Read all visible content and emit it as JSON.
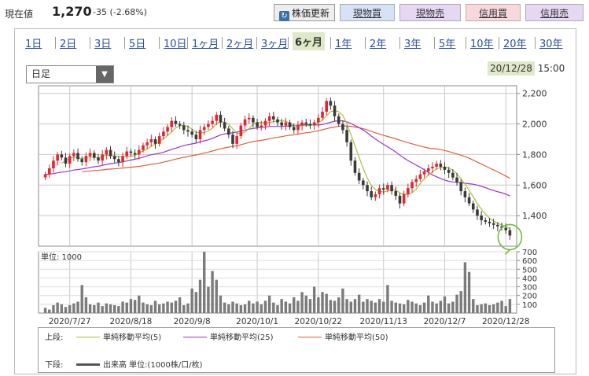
{
  "price": {
    "label": "現在値",
    "value": "1,270",
    "change": "-35 (-2.68%)"
  },
  "buttons": {
    "update": "株価更新",
    "buy": "現物買",
    "sell": "現物売",
    "margin_buy": "信用買",
    "margin_sell": "信用売"
  },
  "periods": [
    "1日",
    "2日",
    "3日",
    "5日",
    "10日",
    "1ヶ月",
    "2ヶ月",
    "3ヶ月",
    "6ヶ月",
    "1年",
    "2年",
    "3年",
    "5年",
    "10年",
    "20年",
    "30年"
  ],
  "selected_period": "6ヶ月",
  "dropdown": {
    "value": "日足",
    "arrow": "▼"
  },
  "stamp": {
    "date": "20/12/28",
    "time": "15:00"
  },
  "colors": {
    "up": "#e0262e",
    "down": "#3a3a3a",
    "ma5": "#a9bf3a",
    "ma25": "#9a33cc",
    "ma50": "#e06040",
    "volume": "#7b7b7b",
    "highlight": "#6cbf3b"
  },
  "legend": {
    "upper": "上段:",
    "lower": "下段:",
    "ma5": "単純移動平均(5)",
    "ma25": "単純移動平均(25)",
    "ma50": "単純移動平均(50)",
    "volume": "出来高 単位:(1000株/口/枚)"
  },
  "chart_data": {
    "type": "candlestick",
    "price_axis": {
      "ticks": [
        "2,200",
        "2,000",
        "1,800",
        "1,600",
        "1,400"
      ],
      "values": [
        2200,
        2000,
        1800,
        1600,
        1400
      ],
      "range": [
        1200,
        2250
      ]
    },
    "volume_axis": {
      "label": "単位: 1000",
      "ticks": [
        "700",
        "600",
        "500",
        "400",
        "300",
        "200",
        "100"
      ],
      "values": [
        700,
        600,
        500,
        400,
        300,
        200,
        100
      ],
      "range": [
        0,
        700
      ]
    },
    "x_labels": [
      "2020/7/27",
      "2020/8/18",
      "2020/9/8",
      "2020/10/1",
      "2020/10/22",
      "2020/11/13",
      "2020/12/7",
      "2020/12/28"
    ],
    "x_label_indices": [
      6,
      21,
      36,
      52,
      67,
      83,
      98,
      113
    ],
    "close": [
      1670,
      1710,
      1760,
      1800,
      1780,
      1740,
      1790,
      1810,
      1770,
      1750,
      1790,
      1810,
      1780,
      1760,
      1800,
      1830,
      1790,
      1770,
      1750,
      1790,
      1820,
      1810,
      1800,
      1830,
      1860,
      1880,
      1900,
      1870,
      1920,
      1950,
      1980,
      2020,
      2000,
      1990,
      1960,
      1950,
      1930,
      1900,
      1960,
      1980,
      2000,
      2020,
      2060,
      2010,
      1970,
      1930,
      1870,
      1920,
      1990,
      2030,
      2040,
      2010,
      1980,
      1990,
      2020,
      2050,
      2030,
      2010,
      1990,
      2010,
      1980,
      1960,
      1990,
      2010,
      2000,
      1990,
      2010,
      2040,
      2080,
      2150,
      2120,
      2050,
      2000,
      1960,
      1880,
      1760,
      1680,
      1630,
      1600,
      1560,
      1520,
      1540,
      1580,
      1570,
      1600,
      1560,
      1530,
      1480,
      1540,
      1580,
      1620,
      1640,
      1670,
      1690,
      1710,
      1720,
      1740,
      1720,
      1700,
      1680,
      1650,
      1620,
      1560,
      1520,
      1480,
      1440,
      1400,
      1370,
      1360,
      1350,
      1340,
      1330,
      1320,
      1305,
      1270
    ],
    "volume": [
      60,
      40,
      90,
      120,
      100,
      70,
      90,
      110,
      130,
      320,
      180,
      100,
      90,
      120,
      80,
      110,
      100,
      90,
      80,
      130,
      120,
      160,
      150,
      200,
      120,
      100,
      90,
      140,
      100,
      110,
      130,
      120,
      140,
      180,
      90,
      110,
      280,
      240,
      380,
      700,
      300,
      480,
      380,
      200,
      120,
      100,
      130,
      110,
      90,
      100,
      140,
      110,
      130,
      100,
      140,
      200,
      120,
      90,
      160,
      130,
      110,
      180,
      140,
      240,
      200,
      160,
      300,
      180,
      240,
      220,
      150,
      140,
      180,
      280,
      160,
      130,
      160,
      210,
      130,
      160,
      140,
      120,
      160,
      130,
      320,
      140,
      120,
      110,
      100,
      150,
      130,
      110,
      90,
      120,
      200,
      130,
      110,
      140,
      190,
      110,
      130,
      210,
      250,
      580,
      470,
      160,
      90,
      100,
      110,
      90,
      100,
      120,
      140,
      80,
      160
    ],
    "series": [
      {
        "name": "単純移動平均(5)"
      },
      {
        "name": "単純移動平均(25)"
      },
      {
        "name": "単純移動平均(50)"
      }
    ]
  }
}
